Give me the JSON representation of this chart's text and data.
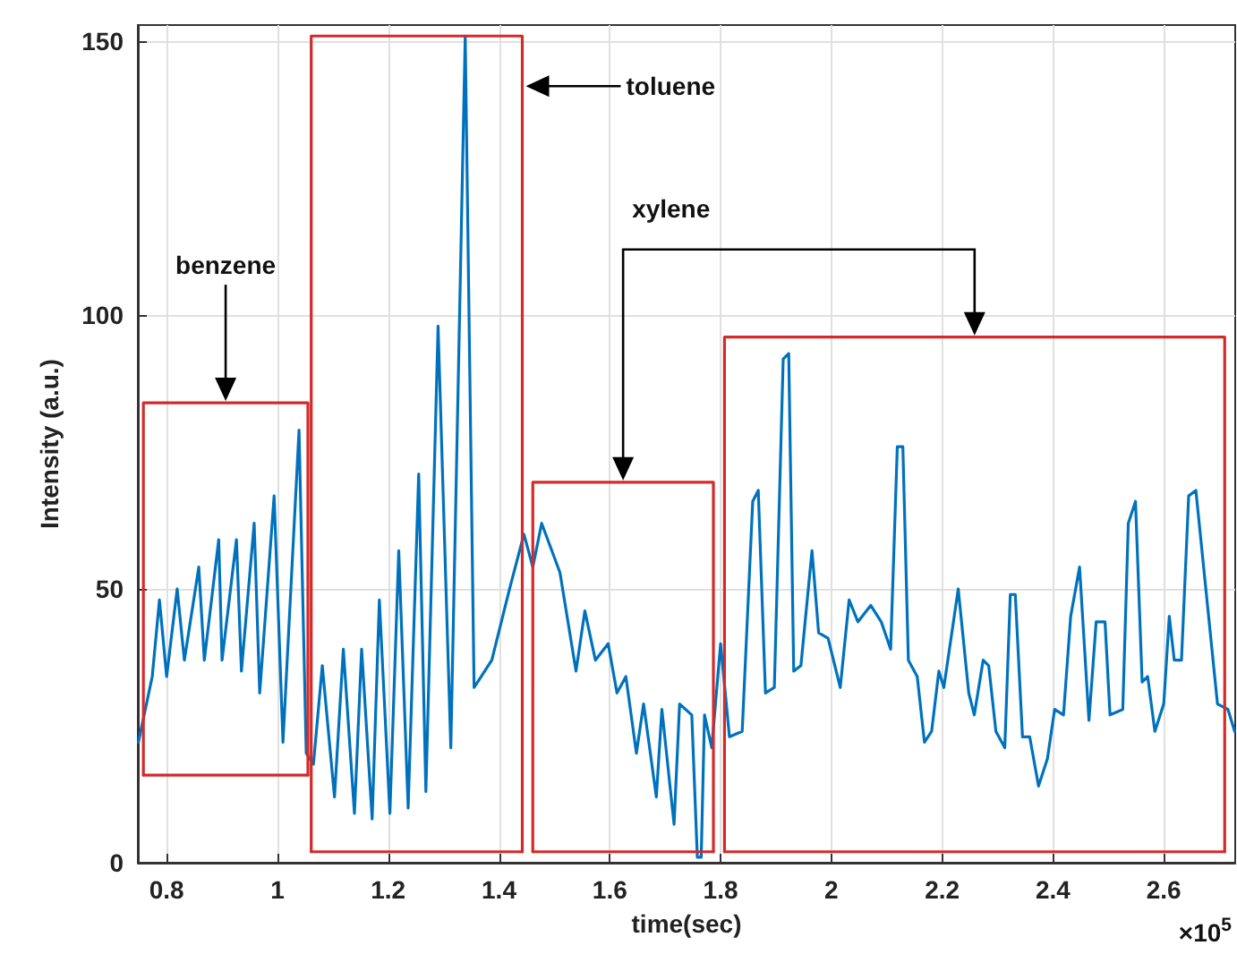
{
  "chart_data": {
    "type": "line",
    "xlabel": "time(sec)",
    "ylabel": "Intensity (a.u.)",
    "xlim": [
      0.748,
      2.729
    ],
    "ylim": [
      0,
      153
    ],
    "xticks": [
      0.8,
      1,
      1.2,
      1.4,
      1.6,
      1.8,
      2,
      2.2,
      2.4,
      2.6
    ],
    "yticks": [
      0,
      50,
      100,
      150
    ],
    "grid": true,
    "marker": "none",
    "series": [
      {
        "color": "#0072bd",
        "x": [
          0.749,
          0.774,
          0.787,
          0.8,
          0.819,
          0.832,
          0.858,
          0.868,
          0.894,
          0.9,
          0.926,
          0.935,
          0.958,
          0.968,
          0.994,
          1.01,
          1.039,
          1.052,
          1.065,
          1.081,
          1.103,
          1.119,
          1.139,
          1.152,
          1.171,
          1.184,
          1.203,
          1.219,
          1.236,
          1.255,
          1.268,
          1.29,
          1.313,
          1.339,
          1.355,
          1.387,
          1.419,
          1.445,
          1.461,
          1.477,
          1.51,
          1.539,
          1.555,
          1.574,
          1.597,
          1.613,
          1.629,
          1.648,
          1.661,
          1.684,
          1.694,
          1.716,
          1.726,
          1.748,
          1.758,
          1.765,
          1.771,
          1.784,
          1.8,
          1.816,
          1.839,
          1.858,
          1.868,
          1.881,
          1.897,
          1.913,
          1.923,
          1.932,
          1.945,
          1.965,
          1.977,
          1.994,
          2.016,
          2.032,
          2.048,
          2.071,
          2.09,
          2.107,
          2.119,
          2.129,
          2.139,
          2.155,
          2.168,
          2.181,
          2.194,
          2.203,
          2.229,
          2.248,
          2.258,
          2.274,
          2.284,
          2.297,
          2.313,
          2.323,
          2.332,
          2.345,
          2.358,
          2.374,
          2.39,
          2.403,
          2.419,
          2.432,
          2.448,
          2.465,
          2.478,
          2.494,
          2.503,
          2.526,
          2.536,
          2.549,
          2.561,
          2.571,
          2.584,
          2.6,
          2.61,
          2.619,
          2.632,
          2.645,
          2.658,
          2.697,
          2.716,
          2.728
        ],
        "values": [
          22,
          34,
          48,
          34,
          50,
          37,
          54,
          37,
          59,
          37,
          59,
          35,
          62,
          31,
          67,
          22,
          79,
          20,
          18,
          36,
          12,
          39,
          9,
          39,
          8,
          48,
          9,
          57,
          10,
          71,
          13,
          98,
          21,
          151,
          32,
          37,
          50,
          60,
          54,
          62,
          53,
          35,
          46,
          37,
          40,
          31,
          34,
          20,
          29,
          12,
          28,
          7,
          29,
          27,
          1,
          1,
          27,
          21,
          40,
          23,
          24,
          66,
          68,
          31,
          32,
          92,
          93,
          35,
          36,
          57,
          42,
          41,
          32,
          48,
          44,
          47,
          44,
          39,
          76,
          76,
          37,
          34,
          22,
          24,
          35,
          32,
          50,
          31,
          27,
          37,
          36,
          24,
          21,
          49,
          49,
          23,
          23,
          14,
          19,
          28,
          27,
          45,
          54,
          26,
          44,
          44,
          27,
          28,
          62,
          66,
          33,
          34,
          24,
          29,
          45,
          37,
          37,
          67,
          68,
          29,
          28,
          24
        ]
      },
      {
        "color": "#d42a2a",
        "x": [
          0.758,
          0.758,
          1.055,
          1.055
        ],
        "values": [
          16,
          84,
          84,
          16
        ]
      },
      {
        "color": "#d42a2a",
        "x": [
          1.061,
          1.061,
          1.442,
          1.442
        ],
        "values": [
          2,
          151,
          151,
          2
        ]
      },
      {
        "color": "#d42a2a",
        "x": [
          1.461,
          1.461,
          1.787,
          1.787
        ],
        "values": [
          2,
          69.5,
          69.5,
          2
        ]
      },
      {
        "color": "#d42a2a",
        "x": [
          1.807,
          1.807,
          2.71,
          2.71
        ],
        "values": [
          2,
          96,
          96,
          2
        ]
      },
      {
        "color": "#d42a2a",
        "x": [
          0.758,
          1.055
        ],
        "values": [
          16,
          16
        ]
      },
      {
        "color": "#d42a2a",
        "x": [
          1.061,
          1.442
        ],
        "values": [
          2,
          2
        ]
      },
      {
        "color": "#d42a2a",
        "x": [
          1.461,
          1.787
        ],
        "values": [
          2,
          2
        ]
      },
      {
        "color": "#d42a2a",
        "x": [
          1.807,
          2.71
        ],
        "values": [
          2,
          2
        ]
      }
    ],
    "annotations": [
      "benzene",
      "toluene",
      "xylene",
      "×10$^{5}$"
    ]
  }
}
